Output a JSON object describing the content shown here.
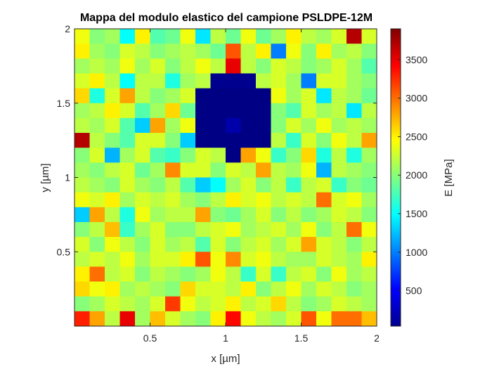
{
  "chart_data": {
    "type": "heatmap",
    "title": "Mappa del modulo elastico del campione PSLDPE-12M",
    "xlabel": "x [µm]",
    "ylabel": "y [µm]",
    "colorbar_label": "E [MPa]",
    "colormap": "jet",
    "clim": [
      40,
      3900
    ],
    "xlim": [
      0,
      2
    ],
    "ylim": [
      0,
      2
    ],
    "xticks": [
      0.5,
      1,
      1.5,
      2
    ],
    "xtick_labels": [
      "0.5",
      "1",
      "1.5",
      "2"
    ],
    "yticks": [
      0.5,
      1,
      1.5,
      2
    ],
    "ytick_labels": [
      "0.5",
      "1",
      "1.5",
      "2"
    ],
    "colorbar_ticks": [
      500,
      1000,
      1500,
      2000,
      2500,
      3000,
      3500
    ],
    "colorbar_tick_labels": [
      "500",
      "1000",
      "1500",
      "2000",
      "2500",
      "3000",
      "3500"
    ],
    "grid_size": [
      20,
      20
    ],
    "values_row_order": "top-to-bottom",
    "values": [
      [
        2400,
        2000,
        2100,
        1500,
        2500,
        1800,
        1900,
        2400,
        1400,
        2200,
        1900,
        2400,
        1900,
        2100,
        2500,
        2200,
        2100,
        2300,
        3700,
        2300
      ],
      [
        2500,
        2100,
        2000,
        2300,
        2200,
        2000,
        2100,
        2200,
        2100,
        1900,
        3100,
        2200,
        2500,
        1000,
        2400,
        2000,
        2500,
        2100,
        2200,
        2000
      ],
      [
        2100,
        2200,
        2100,
        2400,
        2100,
        2300,
        2000,
        2200,
        2400,
        2200,
        3500,
        2200,
        2000,
        2300,
        2200,
        2000,
        2100,
        2300,
        2100,
        1800
      ],
      [
        2300,
        2500,
        2200,
        1500,
        2200,
        2200,
        1600,
        2100,
        2200,
        100,
        100,
        100,
        2200,
        2300,
        2100,
        1000,
        2300,
        2300,
        2100,
        2000
      ],
      [
        2600,
        1600,
        2300,
        2800,
        2200,
        2000,
        2100,
        2300,
        60,
        60,
        60,
        60,
        60,
        2400,
        2100,
        2300,
        1400,
        2200,
        2100,
        1900
      ],
      [
        2100,
        2200,
        2500,
        2300,
        1800,
        2100,
        2600,
        1900,
        60,
        60,
        60,
        60,
        60,
        2000,
        1800,
        2300,
        2100,
        2200,
        1400,
        2200
      ],
      [
        2200,
        2100,
        2300,
        1800,
        1300,
        2800,
        2100,
        2400,
        60,
        60,
        200,
        60,
        60,
        2000,
        2300,
        2100,
        2400,
        2100,
        2200,
        2100
      ],
      [
        3700,
        2200,
        2000,
        1800,
        2300,
        2300,
        2000,
        1300,
        60,
        60,
        60,
        60,
        60,
        2200,
        1700,
        2300,
        2000,
        2400,
        2200,
        2800
      ],
      [
        2000,
        2300,
        1200,
        2100,
        2300,
        1800,
        1700,
        2000,
        2300,
        2200,
        60,
        2800,
        2400,
        1700,
        2000,
        2600,
        1600,
        2200,
        1600,
        2100
      ],
      [
        2100,
        2000,
        2200,
        2300,
        1900,
        2100,
        2900,
        2300,
        2300,
        2000,
        2300,
        2200,
        2800,
        2200,
        2100,
        2400,
        1200,
        2200,
        2100,
        2000
      ],
      [
        2200,
        2100,
        2000,
        2300,
        2100,
        2000,
        2200,
        1800,
        1300,
        1500,
        2100,
        2300,
        2000,
        2200,
        1700,
        2200,
        2300,
        1700,
        2000,
        1900
      ],
      [
        2400,
        2300,
        2500,
        2100,
        2300,
        2200,
        2300,
        2100,
        2000,
        2200,
        2500,
        2300,
        2400,
        2200,
        2300,
        2200,
        3000,
        2300,
        2400,
        2100
      ],
      [
        1300,
        2800,
        2200,
        1600,
        2400,
        2100,
        2200,
        2200,
        2800,
        2000,
        1900,
        2100,
        2300,
        2000,
        2200,
        2000,
        2100,
        2300,
        2200,
        2000
      ],
      [
        2000,
        2200,
        2700,
        1700,
        2100,
        2300,
        2000,
        2000,
        2200,
        2300,
        2400,
        2100,
        2200,
        2300,
        2100,
        2400,
        2000,
        2200,
        3000,
        2400
      ],
      [
        2300,
        2000,
        2400,
        2200,
        2000,
        2300,
        2100,
        2200,
        1800,
        2300,
        2000,
        2200,
        2300,
        2100,
        2300,
        2800,
        2300,
        2200,
        2000,
        2200
      ],
      [
        2200,
        2300,
        2200,
        2400,
        2100,
        2300,
        2300,
        2500,
        3100,
        2400,
        2900,
        2300,
        2400,
        2200,
        2100,
        2100,
        2300,
        2200,
        2100,
        2500
      ],
      [
        2500,
        3000,
        2200,
        2300,
        2000,
        2200,
        2100,
        2000,
        2100,
        2400,
        2200,
        1700,
        2300,
        1700,
        2200,
        2300,
        2000,
        2400,
        2100,
        2200
      ],
      [
        2600,
        2400,
        2500,
        2100,
        2200,
        2100,
        2000,
        2600,
        2300,
        2300,
        2200,
        2500,
        2000,
        2200,
        2400,
        2100,
        2300,
        2200,
        2000,
        2100
      ],
      [
        2000,
        2100,
        2300,
        2200,
        2100,
        2300,
        3200,
        2400,
        2200,
        2300,
        2500,
        2200,
        2300,
        2600,
        2200,
        2000,
        2100,
        2300,
        2200,
        2100
      ],
      [
        3300,
        2800,
        2200,
        3500,
        2100,
        2700,
        2300,
        2100,
        2000,
        2500,
        3400,
        2400,
        2200,
        2100,
        2300,
        3100,
        2400,
        3000,
        3000,
        2700
      ]
    ]
  }
}
